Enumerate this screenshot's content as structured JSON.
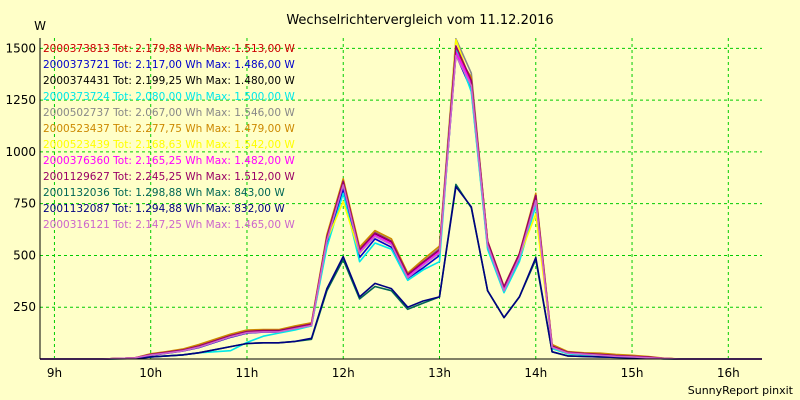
{
  "chart_data": {
    "type": "line",
    "title": "Wechselrichtervergleich vom 11.12.2016",
    "ylabel": "W",
    "footer": "SunnyReport pinxit",
    "x_range": [
      8.85,
      16.35
    ],
    "ylim": [
      0,
      1550
    ],
    "yticks": [
      250,
      500,
      750,
      1000,
      1250,
      1500
    ],
    "xticks": [
      {
        "label": "9h",
        "value": 9
      },
      {
        "label": "10h",
        "value": 10
      },
      {
        "label": "11h",
        "value": 11
      },
      {
        "label": "12h",
        "value": 12
      },
      {
        "label": "13h",
        "value": 13
      },
      {
        "label": "14h",
        "value": 14
      },
      {
        "label": "15h",
        "value": 15
      },
      {
        "label": "16h",
        "value": 16
      }
    ],
    "grid": true,
    "legend_position": "top-left",
    "x": [
      8.85,
      9.0,
      9.5,
      9.83,
      10.0,
      10.17,
      10.33,
      10.5,
      10.83,
      11.0,
      11.17,
      11.33,
      11.5,
      11.67,
      11.83,
      12.0,
      12.17,
      12.33,
      12.5,
      12.67,
      12.83,
      13.0,
      13.17,
      13.33,
      13.5,
      13.67,
      13.83,
      14.0,
      14.17,
      14.33,
      14.5,
      14.67,
      14.83,
      15.0,
      15.17,
      15.33,
      15.5,
      16.0,
      16.35
    ],
    "series": [
      {
        "name": "2000373813 Tot: 2.179,88 Wh Max: 1.513,00 W",
        "color": "#cc0000",
        "values": [
          0,
          0,
          0,
          5,
          20,
          30,
          40,
          60,
          110,
          130,
          135,
          135,
          150,
          165,
          580,
          850,
          520,
          600,
          560,
          400,
          460,
          520,
          1500,
          1340,
          560,
          340,
          500,
          780,
          60,
          30,
          25,
          20,
          15,
          12,
          8,
          3,
          0,
          0,
          0
        ]
      },
      {
        "name": "2000373721 Tot: 2.117,00 Wh Max: 1.486,00 W",
        "color": "#0000cc",
        "values": [
          0,
          0,
          0,
          5,
          18,
          28,
          38,
          55,
          105,
          125,
          130,
          130,
          145,
          160,
          560,
          820,
          490,
          580,
          540,
          390,
          440,
          500,
          1470,
          1300,
          540,
          330,
          480,
          750,
          55,
          28,
          22,
          18,
          13,
          10,
          6,
          2,
          0,
          0,
          0
        ]
      },
      {
        "name": "2000374431 Tot: 2.199,25 Wh Max: 1.480,00 W",
        "color": "#000000",
        "values": [
          0,
          0,
          0,
          5,
          20,
          32,
          42,
          62,
          112,
          132,
          136,
          136,
          152,
          168,
          585,
          855,
          525,
          605,
          565,
          405,
          465,
          525,
          1480,
          1350,
          565,
          345,
          505,
          785,
          62,
          32,
          26,
          21,
          16,
          12,
          8,
          3,
          0,
          0,
          0
        ]
      },
      {
        "name": "2000373724 Tot: 2.080,00 Wh Max: 1.500,00 W",
        "color": "#00e8e8",
        "values": [
          0,
          0,
          0,
          3,
          10,
          15,
          20,
          30,
          40,
          80,
          110,
          125,
          140,
          160,
          540,
          800,
          470,
          560,
          530,
          380,
          430,
          470,
          1500,
          1290,
          530,
          320,
          470,
          740,
          50,
          25,
          20,
          16,
          12,
          9,
          5,
          2,
          0,
          0,
          0
        ]
      },
      {
        "name": "2000502737 Tot: 2.067,00 Wh Max: 1.546,00 W",
        "color": "#888888",
        "values": [
          0,
          0,
          0,
          5,
          22,
          34,
          44,
          64,
          115,
          136,
          138,
          138,
          155,
          170,
          590,
          860,
          530,
          615,
          570,
          410,
          470,
          535,
          1546,
          1380,
          560,
          340,
          500,
          790,
          64,
          34,
          28,
          24,
          18,
          14,
          9,
          3,
          0,
          0,
          0
        ]
      },
      {
        "name": "2000523437 Tot: 2.277,75 Wh Max: 1.479,00 W",
        "color": "#cc8800",
        "values": [
          0,
          0,
          0,
          5,
          25,
          36,
          48,
          70,
          120,
          140,
          142,
          142,
          160,
          175,
          600,
          870,
          540,
          620,
          580,
          415,
          480,
          545,
          1479,
          1360,
          570,
          350,
          510,
          800,
          70,
          36,
          30,
          28,
          22,
          18,
          12,
          4,
          0,
          0,
          0
        ]
      },
      {
        "name": "2000523439 Tot: 2.168,63 Wh Max: 1.542,00 W",
        "color": "#ffff00",
        "values": [
          0,
          0,
          0,
          5,
          20,
          30,
          40,
          58,
          108,
          128,
          133,
          133,
          148,
          163,
          575,
          760,
          510,
          595,
          555,
          395,
          455,
          515,
          1542,
          1330,
          555,
          335,
          495,
          700,
          58,
          30,
          24,
          19,
          14,
          11,
          7,
          3,
          0,
          0,
          0
        ]
      },
      {
        "name": "2000376360 Tot: 2.165,25 Wh Max: 1.482,00 W",
        "color": "#ff00ff",
        "values": [
          0,
          0,
          0,
          5,
          20,
          30,
          40,
          60,
          110,
          130,
          134,
          134,
          150,
          166,
          582,
          848,
          518,
          598,
          558,
          398,
          458,
          518,
          1482,
          1335,
          558,
          338,
          498,
          775,
          60,
          30,
          25,
          20,
          15,
          12,
          8,
          3,
          0,
          0,
          0
        ]
      },
      {
        "name": "2001129627 Tot: 2.245,25 Wh Max: 1.512,00 W",
        "color": "#990066",
        "values": [
          0,
          0,
          0,
          5,
          22,
          33,
          43,
          63,
          113,
          133,
          137,
          137,
          153,
          169,
          588,
          858,
          528,
          608,
          568,
          408,
          468,
          528,
          1512,
          1345,
          568,
          348,
          508,
          790,
          63,
          33,
          27,
          22,
          17,
          13,
          9,
          3,
          0,
          0,
          0
        ]
      },
      {
        "name": "2001132036 Tot: 1.298,88 Wh Max: 843,00 W",
        "color": "#006655",
        "values": [
          0,
          0,
          0,
          2,
          10,
          15,
          20,
          30,
          60,
          75,
          78,
          78,
          85,
          95,
          330,
          480,
          290,
          350,
          330,
          240,
          270,
          300,
          843,
          730,
          330,
          200,
          300,
          480,
          35,
          15,
          12,
          10,
          8,
          6,
          4,
          1,
          0,
          0,
          0
        ]
      },
      {
        "name": "2001132087 Tot: 1.294,88 Wh Max: 832,00 W",
        "color": "#000080",
        "values": [
          0,
          0,
          0,
          2,
          10,
          15,
          20,
          30,
          60,
          75,
          78,
          78,
          85,
          100,
          340,
          495,
          300,
          365,
          340,
          250,
          280,
          300,
          832,
          735,
          330,
          200,
          300,
          490,
          35,
          15,
          12,
          10,
          8,
          6,
          4,
          1,
          0,
          0,
          0
        ]
      },
      {
        "name": "2000316121 Tot: 2.147,25 Wh Max: 1.465,00 W",
        "color": "#cc66cc",
        "values": [
          0,
          0,
          0,
          5,
          19,
          29,
          39,
          57,
          107,
          127,
          131,
          131,
          147,
          162,
          572,
          840,
          512,
          592,
          552,
          392,
          452,
          512,
          1465,
          1320,
          550,
          330,
          490,
          765,
          57,
          29,
          23,
          18,
          13,
          10,
          6,
          2,
          0,
          0,
          0
        ]
      }
    ]
  }
}
